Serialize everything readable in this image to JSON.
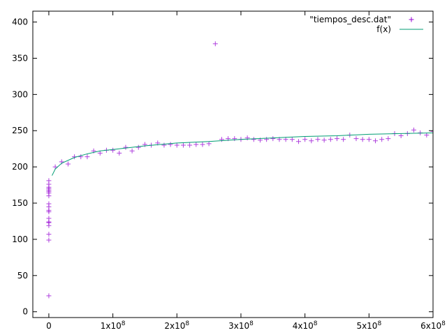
{
  "chart_data": {
    "type": "scatter",
    "xlim": [
      -25000000,
      600000000
    ],
    "ylim": [
      -8,
      415
    ],
    "x_ticks": [
      {
        "value": 0,
        "label": "0"
      },
      {
        "value": 100000000,
        "label": "1x10^8"
      },
      {
        "value": 200000000,
        "label": "2x10^8"
      },
      {
        "value": 300000000,
        "label": "3x10^8"
      },
      {
        "value": 400000000,
        "label": "4x10^8"
      },
      {
        "value": 500000000,
        "label": "5x10^8"
      },
      {
        "value": 600000000,
        "label": "6x10^8"
      }
    ],
    "y_ticks": [
      {
        "value": 0,
        "label": "0"
      },
      {
        "value": 50,
        "label": "50"
      },
      {
        "value": 100,
        "label": "100"
      },
      {
        "value": 150,
        "label": "150"
      },
      {
        "value": 200,
        "label": "200"
      },
      {
        "value": 250,
        "label": "250"
      },
      {
        "value": 300,
        "label": "300"
      },
      {
        "value": 350,
        "label": "350"
      },
      {
        "value": 400,
        "label": "400"
      }
    ],
    "grid": false,
    "legend_position": "top-right",
    "series": [
      {
        "name": "\"tiempos_desc.dat\"",
        "style": "points",
        "marker": "plus",
        "color": "#9400d3",
        "points": [
          [
            0,
            22
          ],
          [
            0,
            99
          ],
          [
            0,
            107
          ],
          [
            0,
            119
          ],
          [
            0,
            123
          ],
          [
            0,
            124
          ],
          [
            0,
            129
          ],
          [
            0,
            138
          ],
          [
            0,
            140
          ],
          [
            0,
            145
          ],
          [
            0,
            149
          ],
          [
            0,
            160
          ],
          [
            0,
            164
          ],
          [
            0,
            166
          ],
          [
            0,
            168
          ],
          [
            0,
            170
          ],
          [
            0,
            172
          ],
          [
            0,
            176
          ],
          [
            0,
            181
          ],
          [
            10000000,
            200
          ],
          [
            20000000,
            207
          ],
          [
            30000000,
            204
          ],
          [
            40000000,
            214
          ],
          [
            50000000,
            214
          ],
          [
            60000000,
            214
          ],
          [
            70000000,
            222
          ],
          [
            80000000,
            219
          ],
          [
            90000000,
            223
          ],
          [
            100000000,
            223
          ],
          [
            110000000,
            219
          ],
          [
            120000000,
            227
          ],
          [
            130000000,
            222
          ],
          [
            140000000,
            227
          ],
          [
            150000000,
            231
          ],
          [
            160000000,
            230
          ],
          [
            170000000,
            233
          ],
          [
            180000000,
            230
          ],
          [
            190000000,
            231
          ],
          [
            200000000,
            230
          ],
          [
            210000000,
            230
          ],
          [
            220000000,
            230
          ],
          [
            230000000,
            231
          ],
          [
            240000000,
            231
          ],
          [
            250000000,
            232
          ],
          [
            260000000,
            370
          ],
          [
            270000000,
            238
          ],
          [
            280000000,
            239
          ],
          [
            290000000,
            239
          ],
          [
            300000000,
            238
          ],
          [
            310000000,
            240
          ],
          [
            320000000,
            238
          ],
          [
            330000000,
            237
          ],
          [
            340000000,
            238
          ],
          [
            350000000,
            239
          ],
          [
            360000000,
            238
          ],
          [
            370000000,
            238
          ],
          [
            380000000,
            238
          ],
          [
            390000000,
            235
          ],
          [
            400000000,
            238
          ],
          [
            410000000,
            236
          ],
          [
            420000000,
            238
          ],
          [
            430000000,
            237
          ],
          [
            440000000,
            238
          ],
          [
            450000000,
            239
          ],
          [
            460000000,
            238
          ],
          [
            470000000,
            244
          ],
          [
            480000000,
            239
          ],
          [
            490000000,
            238
          ],
          [
            500000000,
            238
          ],
          [
            510000000,
            236
          ],
          [
            520000000,
            238
          ],
          [
            530000000,
            239
          ],
          [
            540000000,
            246
          ],
          [
            550000000,
            243
          ],
          [
            560000000,
            246
          ],
          [
            570000000,
            251
          ],
          [
            580000000,
            247
          ],
          [
            590000000,
            244
          ],
          [
            600000000,
            249
          ]
        ]
      },
      {
        "name": "f(x)",
        "style": "line",
        "color": "#009e73",
        "points": [
          [
            5000000,
            188
          ],
          [
            10000000,
            197
          ],
          [
            20000000,
            205
          ],
          [
            40000000,
            213
          ],
          [
            60000000,
            218
          ],
          [
            80000000,
            222
          ],
          [
            100000000,
            224
          ],
          [
            150000000,
            229
          ],
          [
            200000000,
            233
          ],
          [
            250000000,
            235
          ],
          [
            300000000,
            238
          ],
          [
            350000000,
            240
          ],
          [
            400000000,
            242
          ],
          [
            450000000,
            243
          ],
          [
            500000000,
            245
          ],
          [
            550000000,
            246
          ],
          [
            600000000,
            247
          ]
        ]
      }
    ]
  }
}
